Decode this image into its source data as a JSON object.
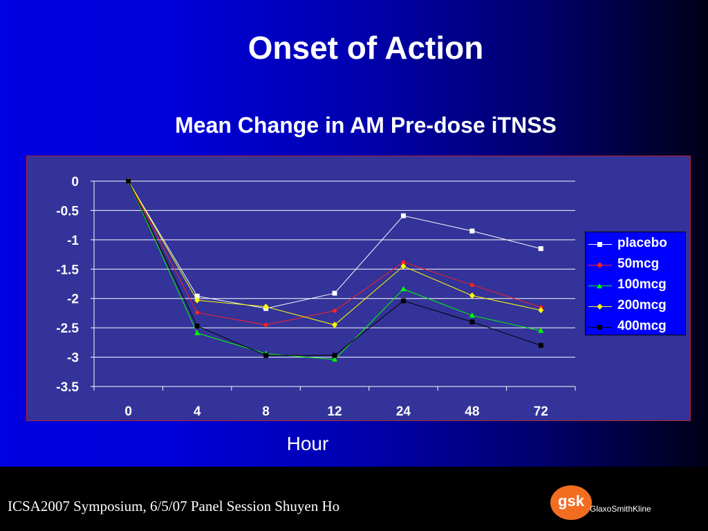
{
  "slide": {
    "title": "Onset of Action",
    "subtitle": "Mean Change in AM Pre-dose iTNSS"
  },
  "chart_data": {
    "type": "line",
    "title": "Mean Change in AM Pre-dose iTNSS",
    "xlabel": "Hour",
    "ylabel": "",
    "categories": [
      "0",
      "4",
      "8",
      "12",
      "24",
      "48",
      "72"
    ],
    "ylim": [
      -3.5,
      0
    ],
    "yticks": [
      "0",
      "-0.5",
      "-1",
      "-1.5",
      "-2",
      "-2.5",
      "-3",
      "-3.5"
    ],
    "grid": true,
    "legend_position": "right",
    "series": [
      {
        "name": "placebo",
        "color": "#ffffff",
        "marker": "square",
        "values": [
          0,
          -1.96,
          -2.17,
          -1.91,
          -0.59,
          -0.85,
          -1.15
        ]
      },
      {
        "name": "50mcg",
        "color": "#ff2020",
        "marker": "circle",
        "values": [
          0,
          -2.24,
          -2.45,
          -2.21,
          -1.38,
          -1.77,
          -2.15
        ]
      },
      {
        "name": "100mcg",
        "color": "#00ff00",
        "marker": "triangle",
        "values": [
          0,
          -2.59,
          -2.94,
          -3.04,
          -1.84,
          -2.29,
          -2.55
        ]
      },
      {
        "name": "200mcg",
        "color": "#ffff00",
        "marker": "diamond",
        "values": [
          0,
          -2.03,
          -2.14,
          -2.45,
          -1.45,
          -1.95,
          -2.2
        ]
      },
      {
        "name": "400mcg",
        "color": "#000000",
        "marker": "square",
        "values": [
          0,
          -2.47,
          -2.97,
          -2.97,
          -2.04,
          -2.4,
          -2.8
        ]
      }
    ]
  },
  "footer": {
    "text": "ICSA2007 Symposium, 6/5/07 Panel Session Shuyen Ho",
    "logo_text": "gsk",
    "logo_name": "GlaxoSmithKline",
    "logo_color": "#f36d21"
  }
}
